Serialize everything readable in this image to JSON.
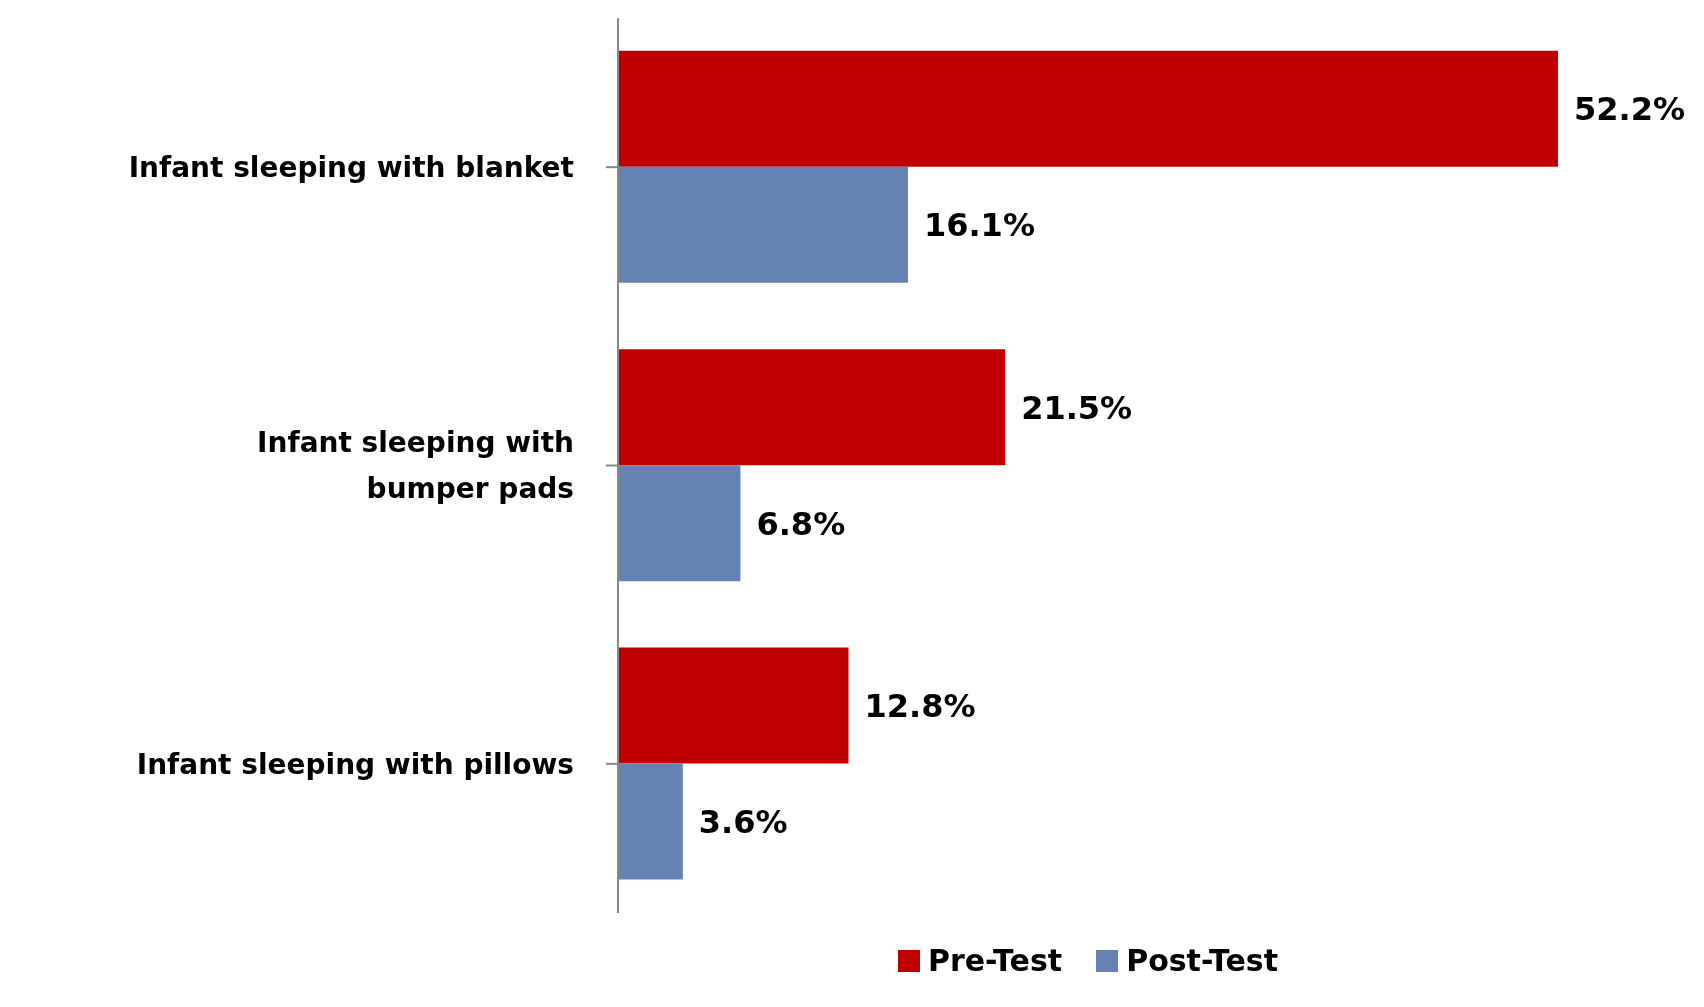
{
  "chart_data": {
    "type": "bar",
    "orientation": "horizontal",
    "categories": [
      "Infant sleeping with blanket",
      "Infant sleeping with bumper pads",
      "Infant sleeping with pillows"
    ],
    "series": [
      {
        "name": "Pre-Test",
        "color": "#c00000",
        "values": [
          52.2,
          21.5,
          12.8
        ],
        "value_labels": [
          "52.2%",
          "21.5%",
          "12.8%"
        ]
      },
      {
        "name": "Post-Test",
        "color": "#6482b2",
        "values": [
          16.1,
          6.8,
          3.6
        ],
        "value_labels": [
          "16.1%",
          "6.8%",
          "3.6%"
        ]
      }
    ],
    "legend": "bottom"
  }
}
